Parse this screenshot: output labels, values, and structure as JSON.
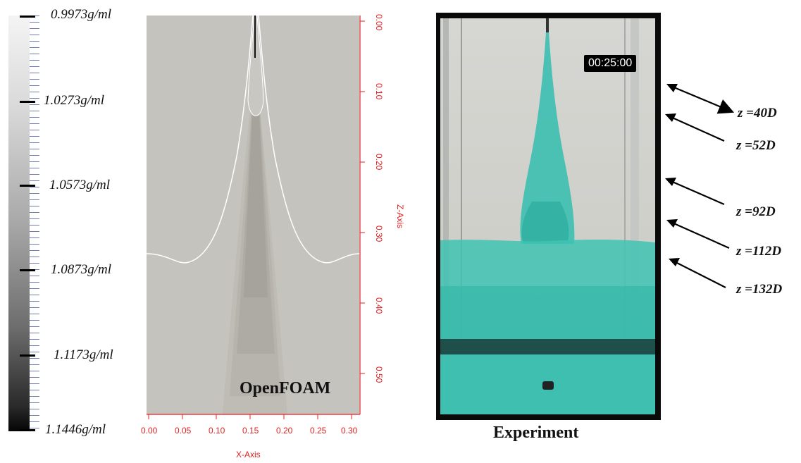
{
  "colorbar": {
    "labels": [
      "0.9973g/ml",
      "1.0273g/ml",
      "1.0573g/ml",
      "1.0873g/ml",
      "1.1173g/ml",
      "1.1446g/ml"
    ]
  },
  "simulation": {
    "title": "OpenFOAM",
    "x_axis": {
      "title": "X-Axis",
      "ticks": [
        "0.00",
        "0.05",
        "0.10",
        "0.15",
        "0.20",
        "0.25",
        "0.30"
      ]
    },
    "z_axis": {
      "title": "Z-Axis",
      "ticks": [
        "0.00",
        "0.10",
        "0.20",
        "0.30",
        "0.40",
        "0.50"
      ]
    }
  },
  "experiment": {
    "title": "Experiment",
    "timestamp": "00:25:00",
    "annotations": [
      "z =40D",
      "z =52D",
      "z =92D",
      "z =112D",
      "z =132D"
    ]
  },
  "colors": {
    "axis": "#e02020",
    "dye": "#3bbfb0",
    "contour": "#ffffff"
  }
}
